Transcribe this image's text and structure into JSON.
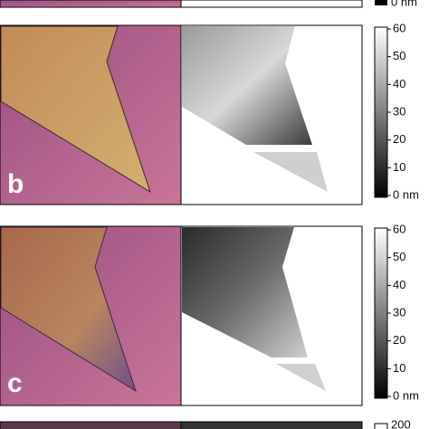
{
  "top_strip": {
    "colorbar_label": "0 nm"
  },
  "panels": [
    {
      "label": "b",
      "colorbar_ticks": [
        "60",
        "50",
        "40",
        "30",
        "20",
        "10",
        "0 nm"
      ]
    },
    {
      "label": "c",
      "colorbar_ticks": [
        "60",
        "50",
        "40",
        "30",
        "20",
        "10",
        "0 nm"
      ]
    }
  ],
  "bottom_strip": {
    "colorbar_label": "200"
  }
}
